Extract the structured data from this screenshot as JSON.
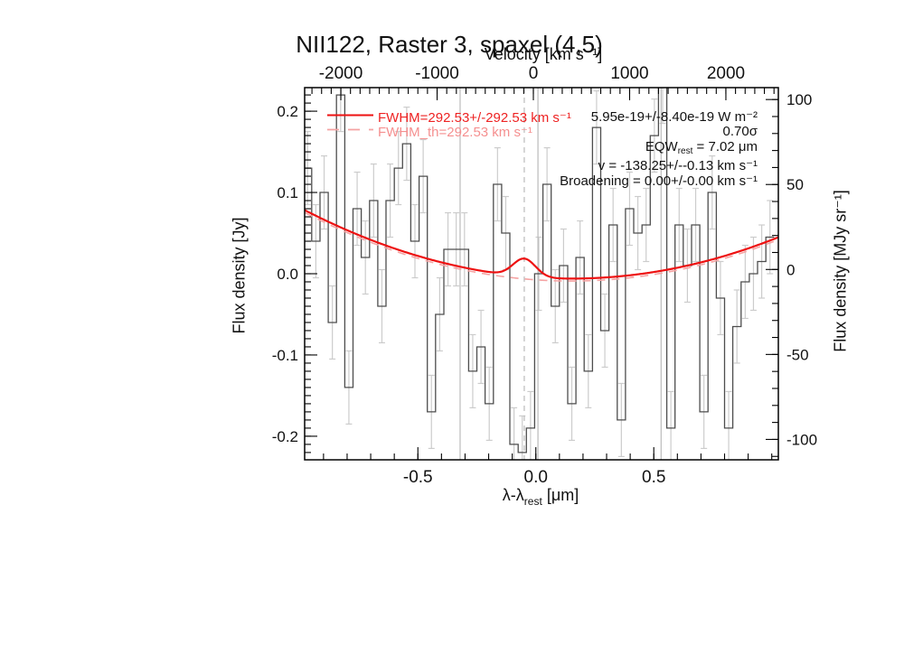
{
  "chart_data": {
    "type": "line",
    "title": "NII122, Raster 3, spaxel (4,5)",
    "top_axis": {
      "label": "Velocity [km s⁻¹]",
      "range": [
        -2376,
        2545
      ],
      "ticks": [
        {
          "v": -2000,
          "label": "-2000"
        },
        {
          "v": -1000,
          "label": "-1000"
        },
        {
          "v": 0,
          "label": "0"
        },
        {
          "v": 1000,
          "label": "1000"
        },
        {
          "v": 2000,
          "label": "2000"
        }
      ],
      "minor_step": 100
    },
    "bottom_axis": {
      "label": "λ-λ_rest [μm]",
      "label_parts": {
        "prefix": "λ-λ",
        "sub": "rest",
        "suffix": " [μm]"
      },
      "range": [
        -0.98,
        1.028
      ],
      "ticks": [
        {
          "v": -0.5,
          "label": "-0.5"
        },
        {
          "v": 0.0,
          "label": "0.0"
        },
        {
          "v": 0.5,
          "label": "0.5"
        }
      ],
      "minor_step": 0.1
    },
    "left_axis": {
      "label": "Flux density [Jy]",
      "range": [
        -0.229,
        0.229
      ],
      "ticks": [
        {
          "v": 0.2,
          "label": "0.2"
        },
        {
          "v": 0.1,
          "label": "0.1"
        },
        {
          "v": 0.0,
          "label": "0.0"
        },
        {
          "v": -0.1,
          "label": "-0.1"
        },
        {
          "v": -0.2,
          "label": "-0.2"
        }
      ],
      "minor_step": 0.01
    },
    "right_axis": {
      "label": "Flux density [MJy sr⁻¹]",
      "range": [
        -112,
        107
      ],
      "ticks": [
        {
          "v": 100,
          "label": "100"
        },
        {
          "v": 50,
          "label": "50"
        },
        {
          "v": 0,
          "label": "0"
        },
        {
          "v": -50,
          "label": "-50"
        },
        {
          "v": -100,
          "label": "-100"
        }
      ],
      "minor_step": 10
    },
    "spectrum": {
      "bin_start": -0.985,
      "bin_width": 0.035,
      "flux_jy": [
        0.13,
        0.04,
        0.1,
        -0.06,
        0.22,
        -0.14,
        0.08,
        0.02,
        0.09,
        -0.04,
        0.09,
        0.13,
        0.16,
        0.04,
        0.12,
        -0.17,
        -0.05,
        0.03,
        0.03,
        0.03,
        -0.12,
        -0.09,
        -0.16,
        0.11,
        0.05,
        -0.21,
        -0.22,
        -0.19,
        0.0,
        0.11,
        -0.04,
        0.01,
        -0.16,
        0.02,
        -0.12,
        0.18,
        -0.07,
        0.06,
        -0.18,
        0.08,
        0.05,
        0.06,
        0.17,
        0.23,
        -0.19,
        0.06,
        0.01,
        0.06,
        -0.17,
        0.1,
        -0.03,
        -0.19,
        -0.065,
        -0.01,
        0.0,
        0.015,
        0.045
      ],
      "flux_err_jy": 0.045,
      "color": "#4d4d4d",
      "error_color": "#cccccc"
    },
    "fit": {
      "color": "#ee1111",
      "th_color": "#f5a3a3",
      "continuum": {
        "a": 0.066,
        "x0": 0.15,
        "c": -0.006
      },
      "gaussian": {
        "center": -0.049,
        "amplitude": 0.022,
        "sigma": 0.048
      },
      "th_gaussian_scale": 0,
      "th_offset": -0.003,
      "fwhm_kms": 292.53,
      "fwhm_err_kms": 292.53,
      "fwhm_th_kms": 292.53,
      "line_flux_wm2": 5.95e-19,
      "line_flux_err_wm2": 8.4e-19,
      "significance_sigma": 0.7,
      "eqw_rest_um": 7.02,
      "velocity_kms": -138.25,
      "velocity_err_kms": -0.13,
      "broadening_kms": 0.0,
      "broadening_err_kms": 0.0
    },
    "markers": {
      "solid_x": [
        -0.321,
        0.009,
        0.531
      ],
      "dashed_x": [
        -0.049
      ],
      "color": "#bbbbbb"
    },
    "legend": {
      "fit_label": "FWHM=292.53+/-292.53 km s⁻¹",
      "fit_th_label": "FWHM_th=292.53 km s⁻¹"
    },
    "annotations": {
      "flux": "5.95e-19+/-8.40e-19 W m⁻²",
      "significance": "0.70σ",
      "eqw_prefix": "EQW",
      "eqw_sub": "rest",
      "eqw_value": " = 7.02 μm",
      "velocity": "v = -138.25+/--0.13 km s⁻¹",
      "broadening": "Broadening = 0.00+/-0.00 km s⁻¹"
    },
    "grid": false,
    "legend_position": "top-left-inside"
  }
}
